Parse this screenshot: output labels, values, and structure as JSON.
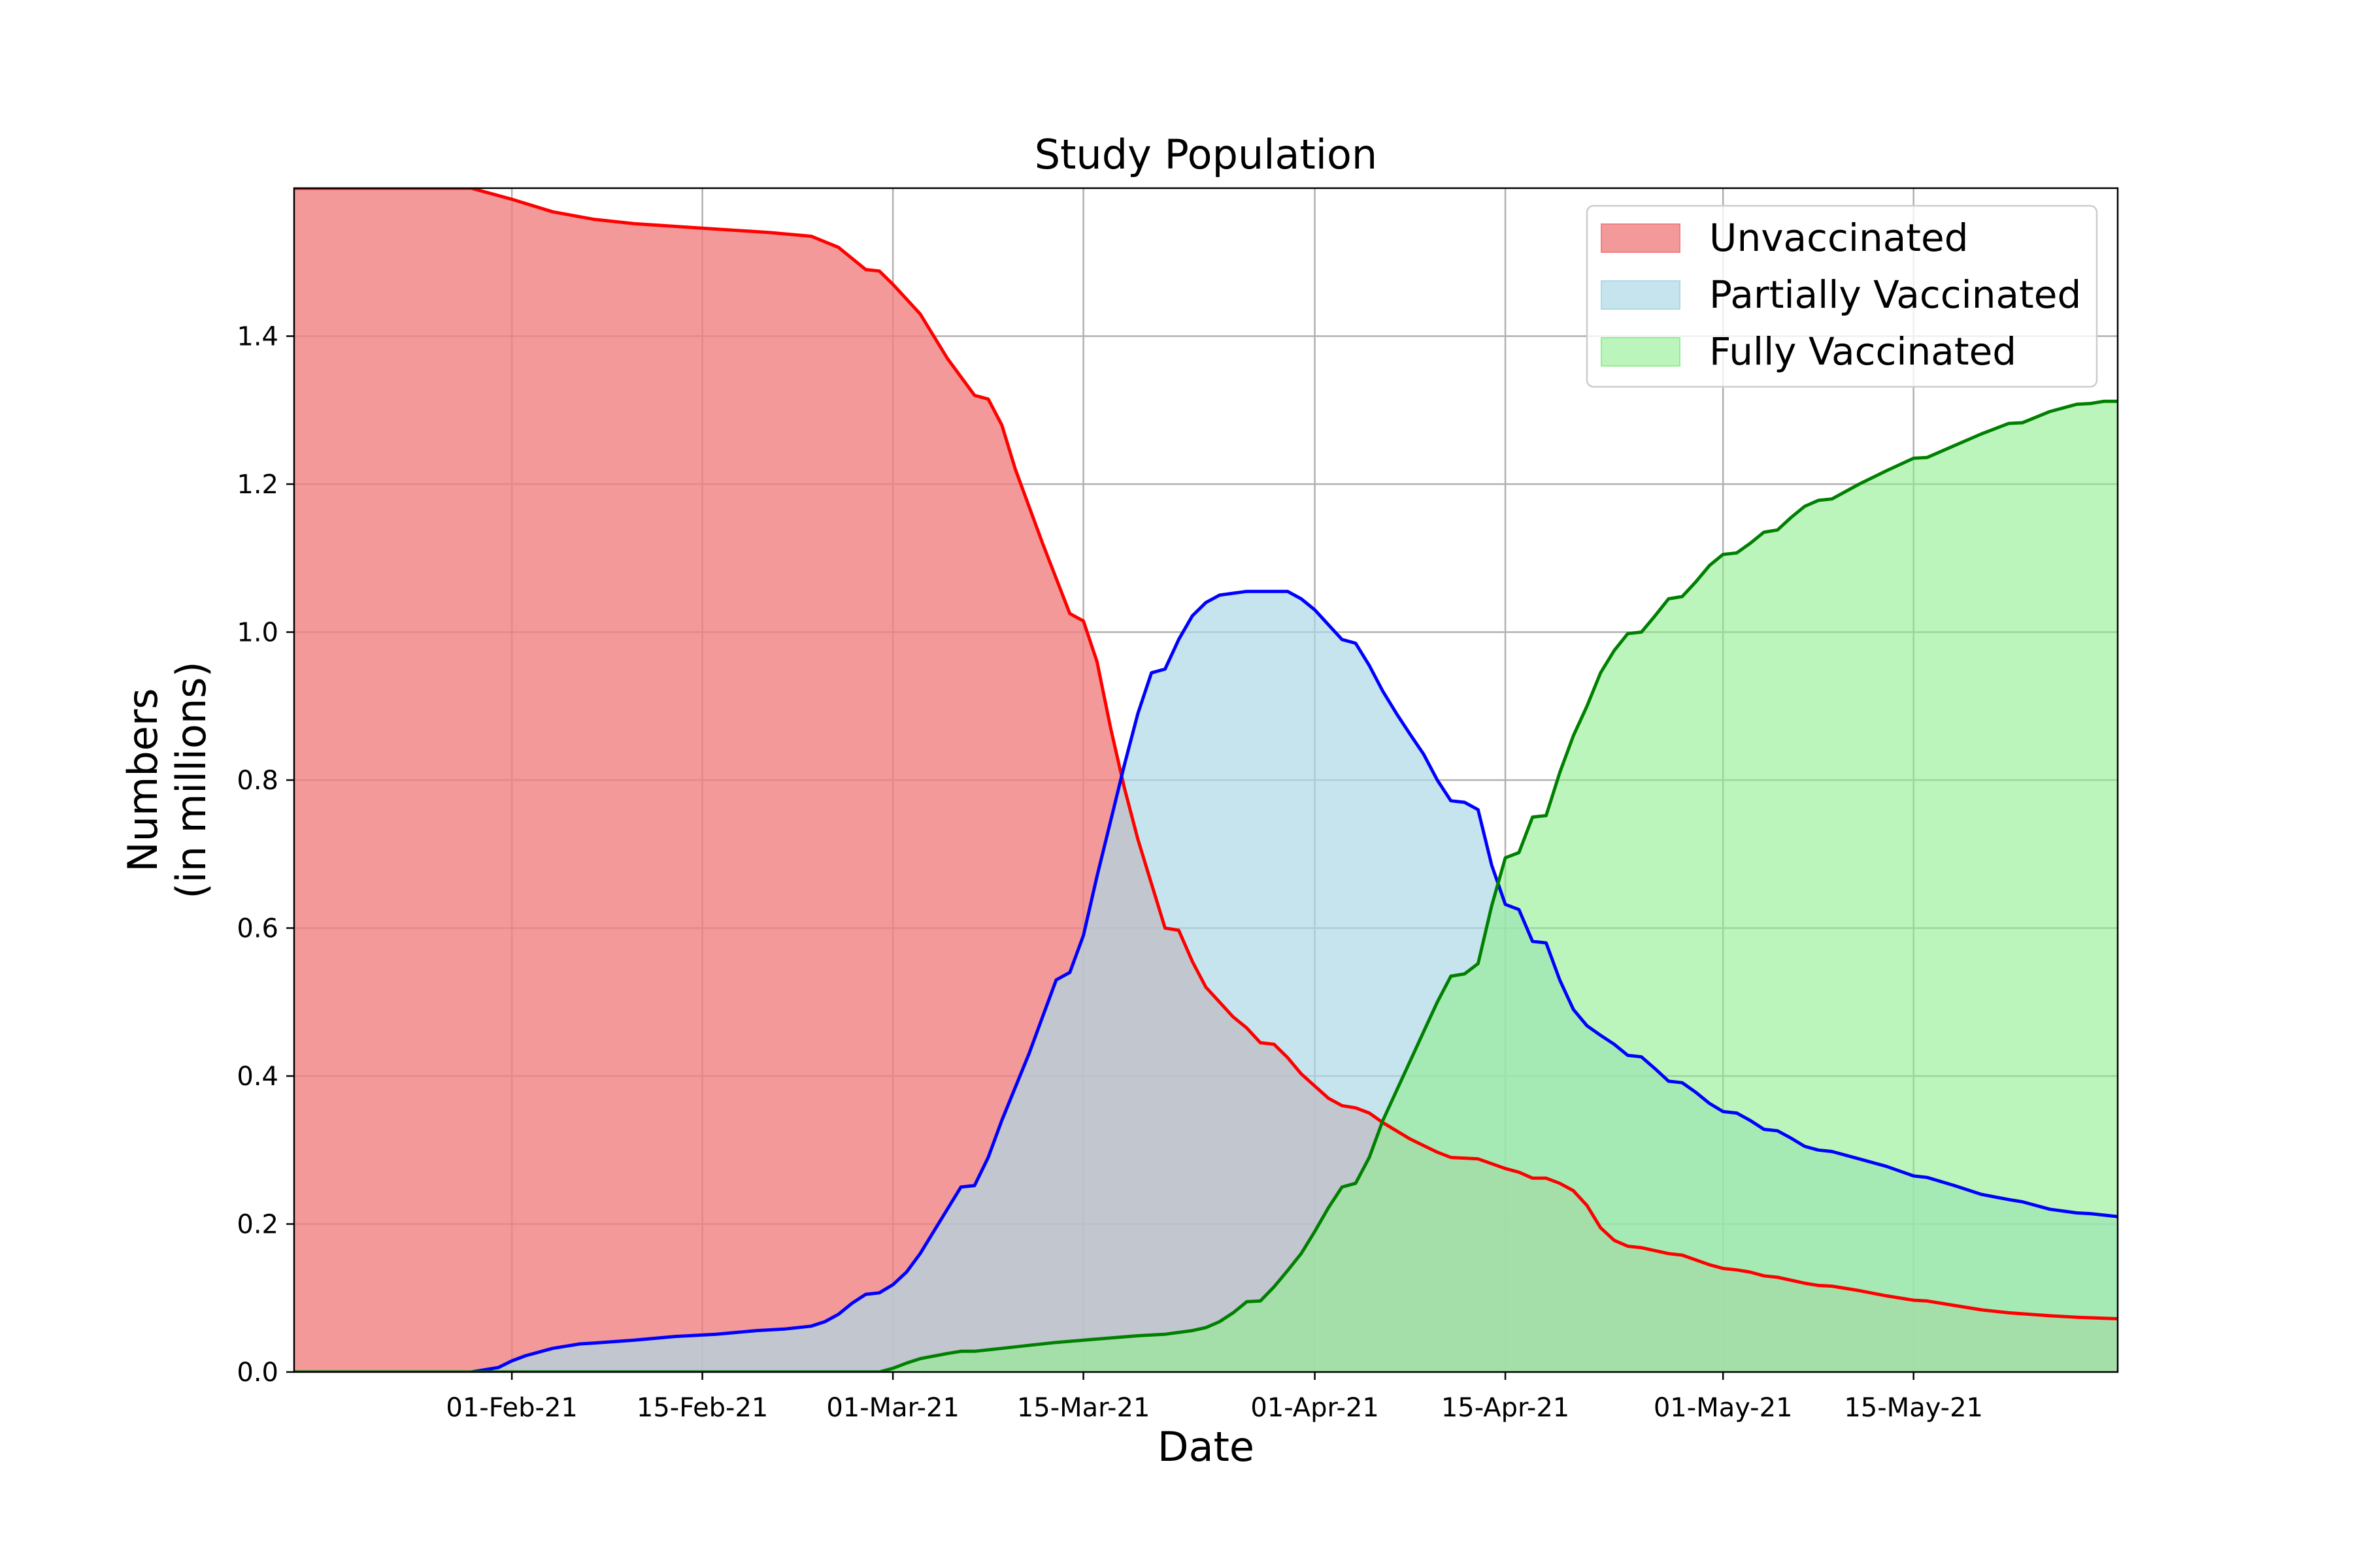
{
  "chart_data": {
    "type": "area",
    "title": "Study Population",
    "xlabel": "Date",
    "ylabel": "Numbers",
    "ylabel_sub": "(in millions)",
    "xlim": [
      "2021-01-16",
      "2021-05-30"
    ],
    "ylim": [
      0,
      1.6
    ],
    "grid": true,
    "legend_position": "top-right",
    "x_ticks": [
      {
        "date": "2021-02-01",
        "label": "01-Feb-21"
      },
      {
        "date": "2021-02-15",
        "label": "15-Feb-21"
      },
      {
        "date": "2021-03-01",
        "label": "01-Mar-21"
      },
      {
        "date": "2021-03-15",
        "label": "15-Mar-21"
      },
      {
        "date": "2021-04-01",
        "label": "01-Apr-21"
      },
      {
        "date": "2021-04-15",
        "label": "15-Apr-21"
      },
      {
        "date": "2021-05-01",
        "label": "01-May-21"
      },
      {
        "date": "2021-05-15",
        "label": "15-May-21"
      }
    ],
    "y_ticks": [
      {
        "value": 0.0,
        "label": "0.0"
      },
      {
        "value": 0.2,
        "label": "0.2"
      },
      {
        "value": 0.4,
        "label": "0.4"
      },
      {
        "value": 0.6,
        "label": "0.6"
      },
      {
        "value": 0.8,
        "label": "0.8"
      },
      {
        "value": 1.0,
        "label": "1.0"
      },
      {
        "value": 1.2,
        "label": "1.2"
      },
      {
        "value": 1.4,
        "label": "1.4"
      }
    ],
    "series": [
      {
        "name": "Unvaccinated",
        "line_color": "#ff0000",
        "fill_color": "#f08080",
        "points": [
          [
            "2021-01-16",
            1.6
          ],
          [
            "2021-01-29",
            1.6
          ],
          [
            "2021-02-01",
            1.585
          ],
          [
            "2021-02-04",
            1.568
          ],
          [
            "2021-02-07",
            1.558
          ],
          [
            "2021-02-10",
            1.552
          ],
          [
            "2021-02-15",
            1.546
          ],
          [
            "2021-02-20",
            1.54
          ],
          [
            "2021-02-23",
            1.535
          ],
          [
            "2021-02-25",
            1.52
          ],
          [
            "2021-02-27",
            1.49
          ],
          [
            "2021-02-28",
            1.488
          ],
          [
            "2021-03-01",
            1.47
          ],
          [
            "2021-03-03",
            1.43
          ],
          [
            "2021-03-05",
            1.37
          ],
          [
            "2021-03-07",
            1.32
          ],
          [
            "2021-03-08",
            1.315
          ],
          [
            "2021-03-09",
            1.28
          ],
          [
            "2021-03-10",
            1.22
          ],
          [
            "2021-03-12",
            1.12
          ],
          [
            "2021-03-14",
            1.025
          ],
          [
            "2021-03-15",
            1.015
          ],
          [
            "2021-03-16",
            0.96
          ],
          [
            "2021-03-17",
            0.87
          ],
          [
            "2021-03-18",
            0.79
          ],
          [
            "2021-03-19",
            0.72
          ],
          [
            "2021-03-20",
            0.66
          ],
          [
            "2021-03-21",
            0.6
          ],
          [
            "2021-03-22",
            0.597
          ],
          [
            "2021-03-23",
            0.555
          ],
          [
            "2021-03-24",
            0.52
          ],
          [
            "2021-03-26",
            0.48
          ],
          [
            "2021-03-27",
            0.465
          ],
          [
            "2021-03-28",
            0.445
          ],
          [
            "2021-03-29",
            0.443
          ],
          [
            "2021-03-30",
            0.425
          ],
          [
            "2021-03-31",
            0.403
          ],
          [
            "2021-04-02",
            0.37
          ],
          [
            "2021-04-03",
            0.36
          ],
          [
            "2021-04-04",
            0.357
          ],
          [
            "2021-04-05",
            0.35
          ],
          [
            "2021-04-06",
            0.337
          ],
          [
            "2021-04-08",
            0.315
          ],
          [
            "2021-04-10",
            0.297
          ],
          [
            "2021-04-11",
            0.29
          ],
          [
            "2021-04-13",
            0.288
          ],
          [
            "2021-04-15",
            0.275
          ],
          [
            "2021-04-16",
            0.27
          ],
          [
            "2021-04-17",
            0.262
          ],
          [
            "2021-04-18",
            0.262
          ],
          [
            "2021-04-19",
            0.255
          ],
          [
            "2021-04-20",
            0.245
          ],
          [
            "2021-04-21",
            0.225
          ],
          [
            "2021-04-22",
            0.195
          ],
          [
            "2021-04-23",
            0.178
          ],
          [
            "2021-04-24",
            0.17
          ],
          [
            "2021-04-25",
            0.168
          ],
          [
            "2021-04-27",
            0.16
          ],
          [
            "2021-04-28",
            0.158
          ],
          [
            "2021-04-30",
            0.145
          ],
          [
            "2021-05-01",
            0.14
          ],
          [
            "2021-05-02",
            0.138
          ],
          [
            "2021-05-03",
            0.135
          ],
          [
            "2021-05-04",
            0.13
          ],
          [
            "2021-05-05",
            0.128
          ],
          [
            "2021-05-07",
            0.12
          ],
          [
            "2021-05-08",
            0.117
          ],
          [
            "2021-05-09",
            0.116
          ],
          [
            "2021-05-11",
            0.11
          ],
          [
            "2021-05-13",
            0.103
          ],
          [
            "2021-05-15",
            0.097
          ],
          [
            "2021-05-16",
            0.096
          ],
          [
            "2021-05-18",
            0.09
          ],
          [
            "2021-05-20",
            0.084
          ],
          [
            "2021-05-22",
            0.08
          ],
          [
            "2021-05-25",
            0.076
          ],
          [
            "2021-05-27",
            0.074
          ],
          [
            "2021-05-30",
            0.072
          ]
        ]
      },
      {
        "name": "Partially Vaccinated",
        "line_color": "#0000ff",
        "fill_color": "#add8e6",
        "points": [
          [
            "2021-01-16",
            0.0
          ],
          [
            "2021-01-29",
            0.0
          ],
          [
            "2021-01-31",
            0.006
          ],
          [
            "2021-02-01",
            0.015
          ],
          [
            "2021-02-02",
            0.022
          ],
          [
            "2021-02-04",
            0.032
          ],
          [
            "2021-02-06",
            0.038
          ],
          [
            "2021-02-07",
            0.039
          ],
          [
            "2021-02-10",
            0.043
          ],
          [
            "2021-02-13",
            0.048
          ],
          [
            "2021-02-16",
            0.051
          ],
          [
            "2021-02-19",
            0.056
          ],
          [
            "2021-02-21",
            0.058
          ],
          [
            "2021-02-23",
            0.062
          ],
          [
            "2021-02-24",
            0.068
          ],
          [
            "2021-02-25",
            0.078
          ],
          [
            "2021-02-26",
            0.093
          ],
          [
            "2021-02-27",
            0.105
          ],
          [
            "2021-02-28",
            0.107
          ],
          [
            "2021-03-01",
            0.118
          ],
          [
            "2021-03-02",
            0.135
          ],
          [
            "2021-03-03",
            0.16
          ],
          [
            "2021-03-04",
            0.19
          ],
          [
            "2021-03-05",
            0.22
          ],
          [
            "2021-03-06",
            0.25
          ],
          [
            "2021-03-07",
            0.252
          ],
          [
            "2021-03-08",
            0.29
          ],
          [
            "2021-03-09",
            0.34
          ],
          [
            "2021-03-10",
            0.385
          ],
          [
            "2021-03-11",
            0.43
          ],
          [
            "2021-03-12",
            0.48
          ],
          [
            "2021-03-13",
            0.53
          ],
          [
            "2021-03-14",
            0.54
          ],
          [
            "2021-03-15",
            0.59
          ],
          [
            "2021-03-16",
            0.67
          ],
          [
            "2021-03-17",
            0.745
          ],
          [
            "2021-03-18",
            0.82
          ],
          [
            "2021-03-19",
            0.89
          ],
          [
            "2021-03-20",
            0.945
          ],
          [
            "2021-03-21",
            0.95
          ],
          [
            "2021-03-22",
            0.99
          ],
          [
            "2021-03-23",
            1.022
          ],
          [
            "2021-03-24",
            1.04
          ],
          [
            "2021-03-25",
            1.05
          ],
          [
            "2021-03-27",
            1.055
          ],
          [
            "2021-03-30",
            1.055
          ],
          [
            "2021-03-31",
            1.045
          ],
          [
            "2021-04-01",
            1.03
          ],
          [
            "2021-04-02",
            1.01
          ],
          [
            "2021-04-03",
            0.99
          ],
          [
            "2021-04-04",
            0.985
          ],
          [
            "2021-04-05",
            0.955
          ],
          [
            "2021-04-06",
            0.92
          ],
          [
            "2021-04-07",
            0.89
          ],
          [
            "2021-04-08",
            0.862
          ],
          [
            "2021-04-09",
            0.835
          ],
          [
            "2021-04-10",
            0.8
          ],
          [
            "2021-04-11",
            0.772
          ],
          [
            "2021-04-12",
            0.77
          ],
          [
            "2021-04-13",
            0.76
          ],
          [
            "2021-04-14",
            0.685
          ],
          [
            "2021-04-15",
            0.632
          ],
          [
            "2021-04-16",
            0.625
          ],
          [
            "2021-04-17",
            0.582
          ],
          [
            "2021-04-18",
            0.58
          ],
          [
            "2021-04-19",
            0.53
          ],
          [
            "2021-04-20",
            0.49
          ],
          [
            "2021-04-21",
            0.468
          ],
          [
            "2021-04-22",
            0.455
          ],
          [
            "2021-04-23",
            0.443
          ],
          [
            "2021-04-24",
            0.428
          ],
          [
            "2021-04-25",
            0.426
          ],
          [
            "2021-04-26",
            0.41
          ],
          [
            "2021-04-27",
            0.393
          ],
          [
            "2021-04-28",
            0.391
          ],
          [
            "2021-04-29",
            0.378
          ],
          [
            "2021-04-30",
            0.363
          ],
          [
            "2021-05-01",
            0.352
          ],
          [
            "2021-05-02",
            0.35
          ],
          [
            "2021-05-03",
            0.34
          ],
          [
            "2021-05-04",
            0.328
          ],
          [
            "2021-05-05",
            0.326
          ],
          [
            "2021-05-06",
            0.316
          ],
          [
            "2021-05-07",
            0.305
          ],
          [
            "2021-05-08",
            0.3
          ],
          [
            "2021-05-09",
            0.298
          ],
          [
            "2021-05-11",
            0.288
          ],
          [
            "2021-05-13",
            0.278
          ],
          [
            "2021-05-15",
            0.265
          ],
          [
            "2021-05-16",
            0.263
          ],
          [
            "2021-05-18",
            0.252
          ],
          [
            "2021-05-20",
            0.24
          ],
          [
            "2021-05-22",
            0.233
          ],
          [
            "2021-05-23",
            0.23
          ],
          [
            "2021-05-25",
            0.22
          ],
          [
            "2021-05-27",
            0.215
          ],
          [
            "2021-05-28",
            0.214
          ],
          [
            "2021-05-30",
            0.21
          ]
        ]
      },
      {
        "name": "Fully Vaccinated",
        "line_color": "#008000",
        "fill_color": "#90ee90",
        "points": [
          [
            "2021-01-16",
            0.0
          ],
          [
            "2021-02-28",
            0.0
          ],
          [
            "2021-03-01",
            0.005
          ],
          [
            "2021-03-02",
            0.012
          ],
          [
            "2021-03-03",
            0.018
          ],
          [
            "2021-03-05",
            0.025
          ],
          [
            "2021-03-06",
            0.028
          ],
          [
            "2021-03-07",
            0.028
          ],
          [
            "2021-03-09",
            0.032
          ],
          [
            "2021-03-11",
            0.036
          ],
          [
            "2021-03-13",
            0.04
          ],
          [
            "2021-03-15",
            0.043
          ],
          [
            "2021-03-17",
            0.046
          ],
          [
            "2021-03-19",
            0.049
          ],
          [
            "2021-03-21",
            0.051
          ],
          [
            "2021-03-23",
            0.056
          ],
          [
            "2021-03-24",
            0.06
          ],
          [
            "2021-03-25",
            0.068
          ],
          [
            "2021-03-26",
            0.08
          ],
          [
            "2021-03-27",
            0.095
          ],
          [
            "2021-03-28",
            0.096
          ],
          [
            "2021-03-29",
            0.115
          ],
          [
            "2021-03-30",
            0.137
          ],
          [
            "2021-03-31",
            0.16
          ],
          [
            "2021-04-01",
            0.19
          ],
          [
            "2021-04-02",
            0.222
          ],
          [
            "2021-04-03",
            0.25
          ],
          [
            "2021-04-04",
            0.255
          ],
          [
            "2021-04-05",
            0.29
          ],
          [
            "2021-04-06",
            0.34
          ],
          [
            "2021-04-07",
            0.38
          ],
          [
            "2021-04-08",
            0.42
          ],
          [
            "2021-04-09",
            0.46
          ],
          [
            "2021-04-10",
            0.5
          ],
          [
            "2021-04-11",
            0.535
          ],
          [
            "2021-04-12",
            0.538
          ],
          [
            "2021-04-13",
            0.552
          ],
          [
            "2021-04-14",
            0.63
          ],
          [
            "2021-04-15",
            0.695
          ],
          [
            "2021-04-16",
            0.702
          ],
          [
            "2021-04-17",
            0.75
          ],
          [
            "2021-04-18",
            0.752
          ],
          [
            "2021-04-19",
            0.81
          ],
          [
            "2021-04-20",
            0.86
          ],
          [
            "2021-04-21",
            0.9
          ],
          [
            "2021-04-22",
            0.945
          ],
          [
            "2021-04-23",
            0.975
          ],
          [
            "2021-04-24",
            0.998
          ],
          [
            "2021-04-25",
            1.0
          ],
          [
            "2021-04-26",
            1.022
          ],
          [
            "2021-04-27",
            1.045
          ],
          [
            "2021-04-28",
            1.048
          ],
          [
            "2021-04-29",
            1.068
          ],
          [
            "2021-04-30",
            1.09
          ],
          [
            "2021-05-01",
            1.105
          ],
          [
            "2021-05-02",
            1.107
          ],
          [
            "2021-05-03",
            1.12
          ],
          [
            "2021-05-04",
            1.135
          ],
          [
            "2021-05-05",
            1.138
          ],
          [
            "2021-05-06",
            1.155
          ],
          [
            "2021-05-07",
            1.17
          ],
          [
            "2021-05-08",
            1.178
          ],
          [
            "2021-05-09",
            1.18
          ],
          [
            "2021-05-11",
            1.2
          ],
          [
            "2021-05-13",
            1.218
          ],
          [
            "2021-05-15",
            1.235
          ],
          [
            "2021-05-16",
            1.236
          ],
          [
            "2021-05-18",
            1.252
          ],
          [
            "2021-05-20",
            1.268
          ],
          [
            "2021-05-22",
            1.282
          ],
          [
            "2021-05-23",
            1.283
          ],
          [
            "2021-05-25",
            1.298
          ],
          [
            "2021-05-27",
            1.308
          ],
          [
            "2021-05-28",
            1.309
          ],
          [
            "2021-05-29",
            1.312
          ],
          [
            "2021-05-30",
            1.312
          ]
        ]
      }
    ]
  }
}
